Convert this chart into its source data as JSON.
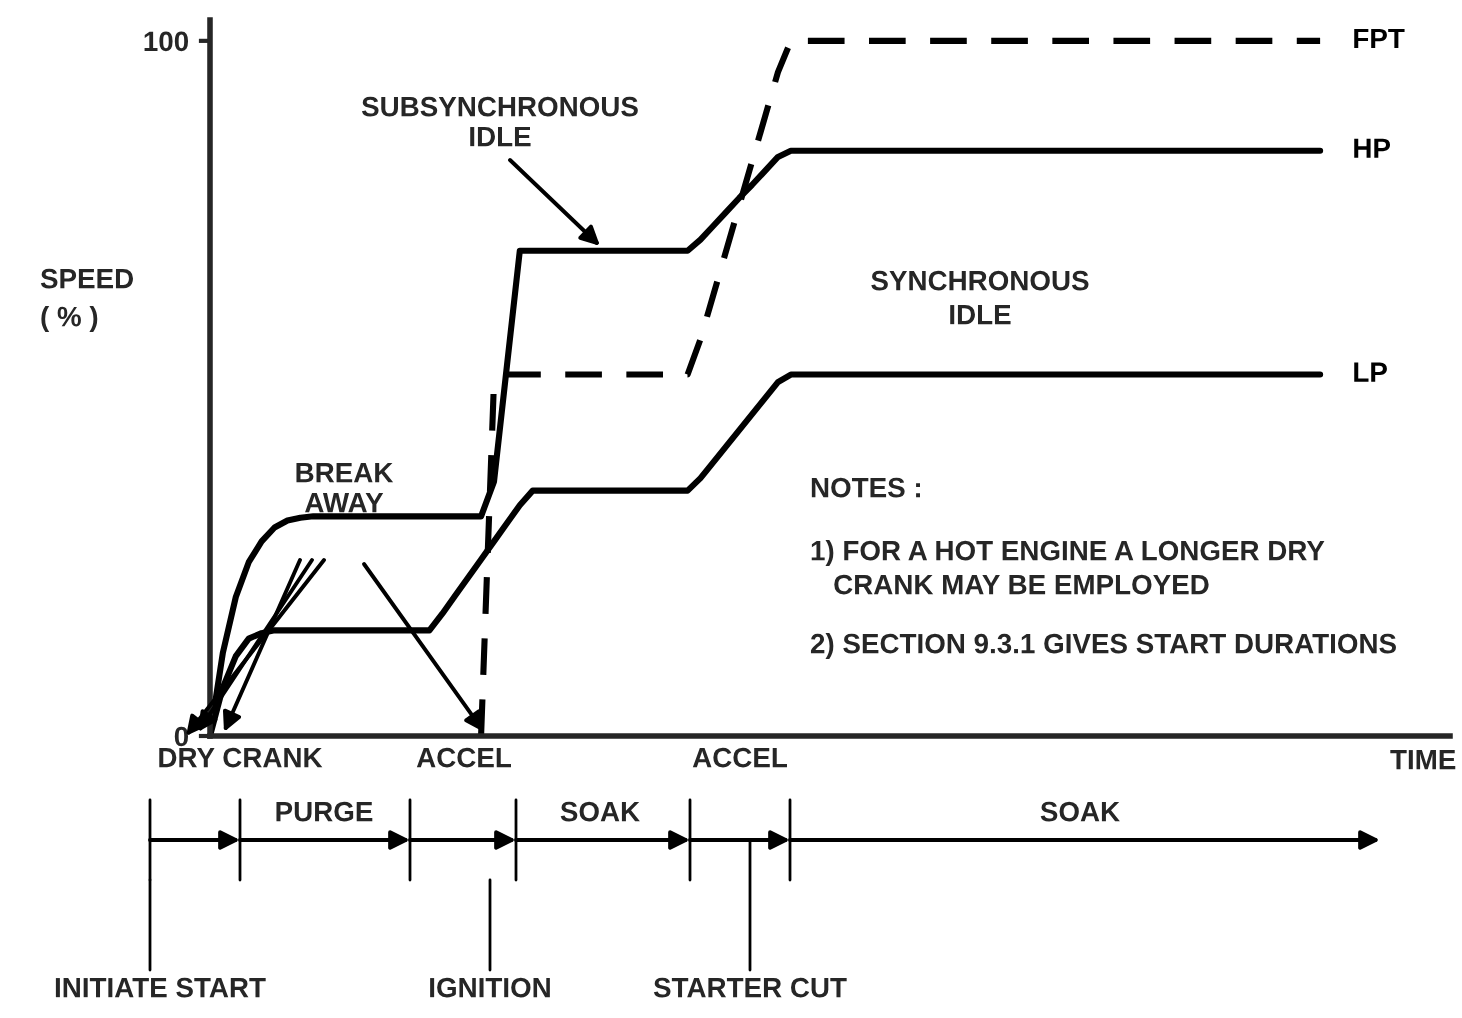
{
  "chart_data": {
    "type": "line",
    "ylabel": "SPEED\n( % )",
    "xlabel": "TIME",
    "categories": [
      null,
      null,
      null,
      null,
      null,
      null,
      null,
      null,
      null,
      null,
      null,
      null,
      null,
      null,
      null,
      null,
      null,
      null,
      null,
      null,
      null,
      null,
      null,
      null,
      null,
      null,
      null,
      null,
      null,
      null,
      null,
      null,
      null,
      null,
      null,
      null,
      null,
      null,
      null,
      null,
      null,
      null,
      null,
      null,
      null,
      null,
      null,
      null,
      null,
      null,
      null,
      null,
      null,
      null,
      null,
      null,
      null,
      null,
      null,
      null,
      null,
      null,
      null,
      null,
      null,
      null,
      null,
      null,
      null,
      null,
      null,
      null,
      null,
      null,
      null,
      null,
      null,
      null,
      null,
      null,
      null,
      null,
      null,
      null,
      null,
      null,
      null
    ],
    "ylim": [
      0,
      103
    ],
    "yticks": [
      0,
      100
    ],
    "tick_labels": "y",
    "grid": false,
    "legend": false,
    "series": [
      {
        "name": "FPT",
        "color": "#000000",
        "line_style": "dashed",
        "values": [
          null,
          null,
          null,
          null,
          null,
          null,
          null,
          null,
          null,
          null,
          null,
          null,
          null,
          null,
          null,
          null,
          null,
          null,
          null,
          null,
          null,
          0,
          51,
          52,
          52,
          52,
          52,
          52,
          52,
          52,
          52,
          52,
          52,
          52,
          52,
          52,
          52,
          52,
          57.1,
          63.5,
          69.9,
          76.3,
          82.7,
          89.1,
          95.5,
          100,
          100,
          100,
          100,
          100,
          100,
          100,
          100,
          100,
          100,
          100,
          100,
          100,
          100,
          100,
          100,
          100,
          100,
          100,
          100,
          100,
          100,
          100,
          100,
          100,
          100,
          100,
          100,
          100,
          100,
          100,
          100,
          100,
          100,
          100,
          100,
          100,
          100,
          100,
          100,
          100,
          100
        ]
      },
      {
        "name": "HP",
        "color": "#000000",
        "line_style": "solid",
        "values": [
          0,
          12,
          20,
          25,
          28,
          30,
          31,
          31.4,
          31.6,
          31.6,
          31.6,
          31.6,
          31.6,
          31.6,
          31.6,
          31.6,
          31.6,
          31.6,
          31.6,
          31.6,
          31.6,
          31.6,
          36.6,
          53.2,
          69.8,
          69.8,
          69.8,
          69.8,
          69.8,
          69.8,
          69.8,
          69.8,
          69.8,
          69.8,
          69.8,
          69.8,
          69.8,
          69.8,
          71.4,
          73.4,
          75.4,
          77.4,
          79.3,
          81.3,
          83.3,
          84.2,
          84.2,
          84.2,
          84.2,
          84.2,
          84.2,
          84.2,
          84.2,
          84.2,
          84.2,
          84.2,
          84.2,
          84.2,
          84.2,
          84.2,
          84.2,
          84.2,
          84.2,
          84.2,
          84.2,
          84.2,
          84.2,
          84.2,
          84.2,
          84.2,
          84.2,
          84.2,
          84.2,
          84.2,
          84.2,
          84.2,
          84.2,
          84.2,
          84.2,
          84.2,
          84.2,
          84.2,
          84.2,
          84.2,
          84.2,
          84.2,
          84.2
        ]
      },
      {
        "name": "LP",
        "color": "#000000",
        "line_style": "solid",
        "values": [
          0,
          7,
          11.5,
          14,
          14.8,
          15.2,
          15.2,
          15.2,
          15.2,
          15.2,
          15.2,
          15.2,
          15.2,
          15.2,
          15.2,
          15.2,
          15.2,
          15.2,
          17.6,
          20.2,
          22.8,
          25.4,
          28.0,
          30.6,
          33.2,
          35.3,
          35.3,
          35.3,
          35.3,
          35.3,
          35.3,
          35.3,
          35.3,
          35.3,
          35.3,
          35.3,
          35.3,
          35.3,
          37.1,
          39.4,
          41.7,
          44.0,
          46.3,
          48.6,
          50.9,
          52,
          52,
          52,
          52,
          52,
          52,
          52,
          52,
          52,
          52,
          52,
          52,
          52,
          52,
          52,
          52,
          52,
          52,
          52,
          52,
          52,
          52,
          52,
          52,
          52,
          52,
          52,
          52,
          52,
          52,
          52,
          52,
          52,
          52,
          52,
          52,
          52,
          52,
          52,
          52,
          52,
          52
        ]
      }
    ],
    "annotations": [
      "SUBSYNCHRONOUS\nIDLE",
      "SYNCHRONOUS\nIDLE",
      "BREAK\nAWAY",
      "NOTES :",
      "1) FOR A HOT ENGINE A LONGER DRY\n   CRANK MAY BE EMPLOYED",
      "2) SECTION 9.3.1 GIVES START DURATIONS",
      "DRY CRANK",
      "PURGE",
      "ACCEL",
      "SOAK",
      "ACCEL",
      "SOAK",
      "INITIATE START",
      "IGNITION",
      "STARTER CUT"
    ]
  }
}
